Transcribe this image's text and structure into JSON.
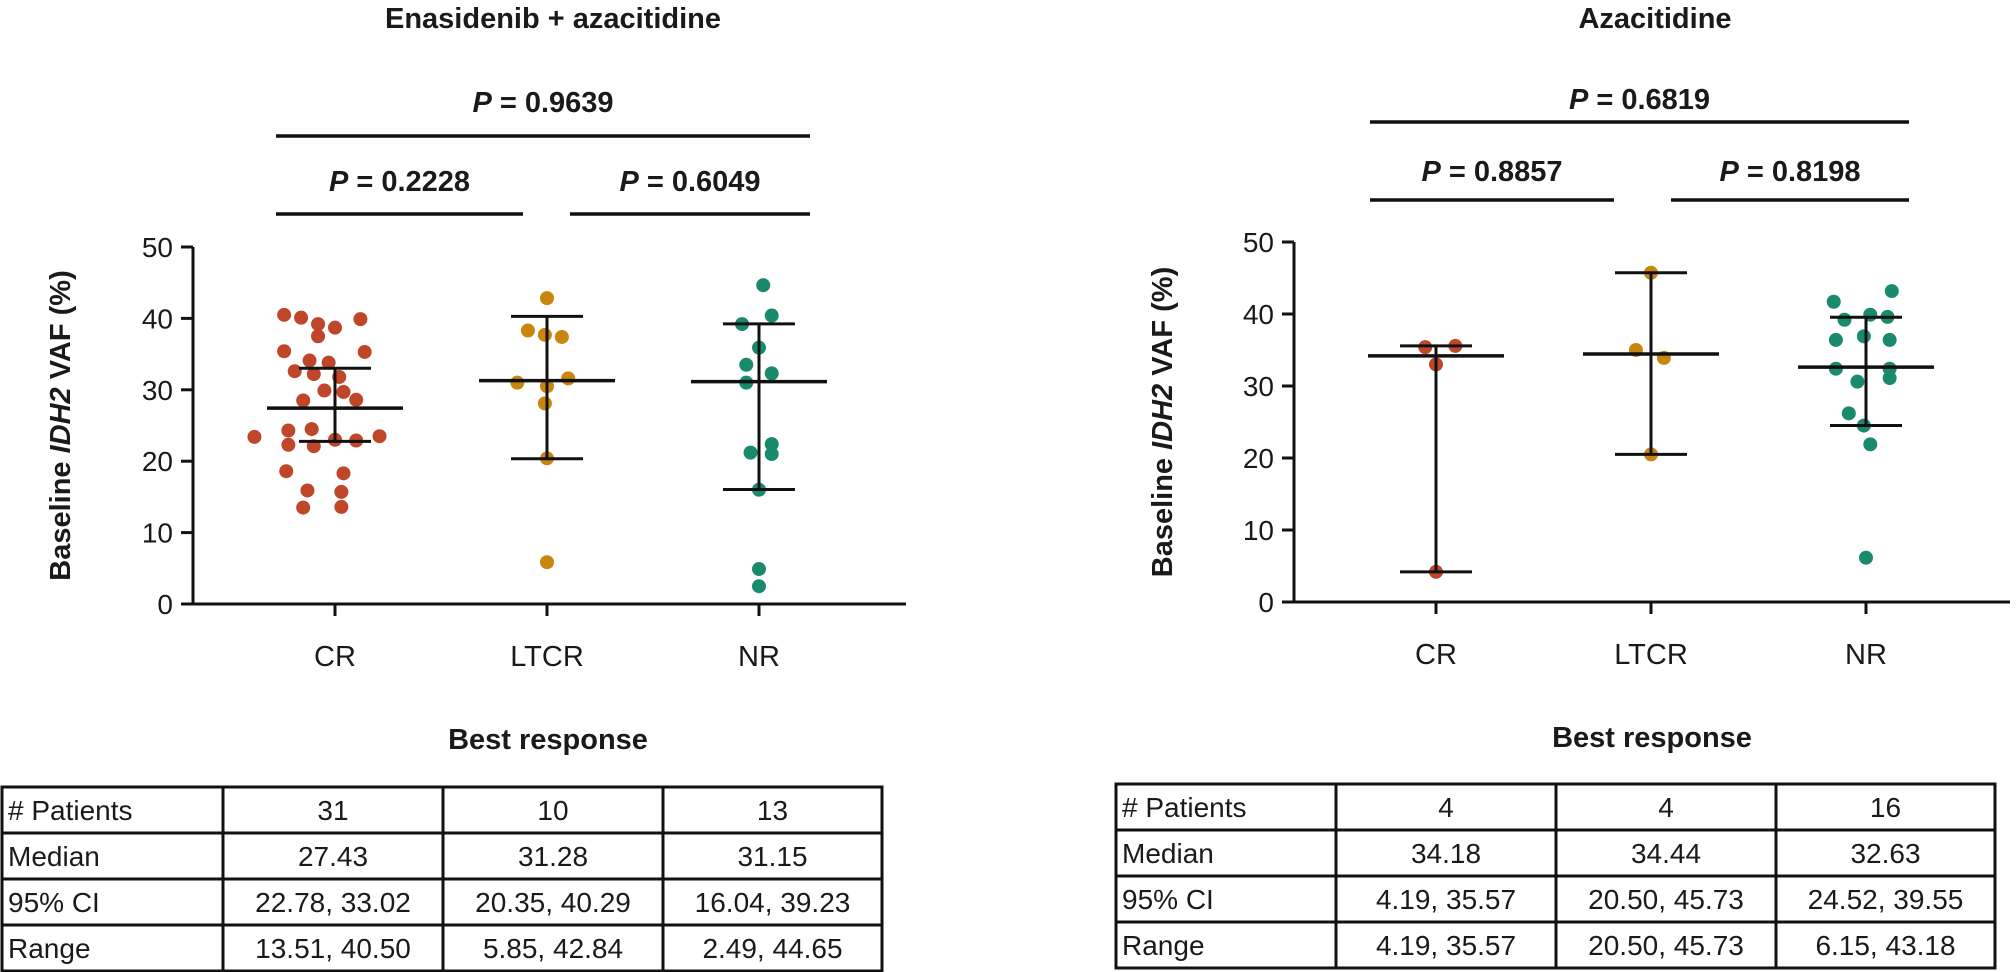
{
  "chart_data": [
    {
      "type": "scatter",
      "title": "Enasidenib + azacitidine",
      "ylabel_parts": [
        "Baseline ",
        "IDH2",
        " VAF (%)"
      ],
      "xlabel": "Best response",
      "categories": [
        "CR",
        "LTCR",
        "NR"
      ],
      "ylim": [
        0,
        50
      ],
      "yticks": [
        "0",
        "10",
        "20",
        "30",
        "40",
        "50"
      ],
      "colors": {
        "CR": "#c0462a",
        "LTCR": "#c8860f",
        "NR": "#1a8a6e"
      },
      "p_values": [
        {
          "label": "P",
          "text": " = 0.9639",
          "from": "CR",
          "to": "NR"
        },
        {
          "label": "P",
          "text": " = 0.2228",
          "from": "CR",
          "to": "LTCR"
        },
        {
          "label": "P",
          "text": " = 0.6049",
          "from": "LTCR",
          "to": "NR"
        }
      ],
      "series": [
        {
          "name": "CR",
          "median": 27.43,
          "ci": [
            22.78,
            33.02
          ],
          "points": [
            [
              -0.24,
              40.5
            ],
            [
              -0.16,
              40.1
            ],
            [
              -0.08,
              39.2
            ],
            [
              0.0,
              38.7
            ],
            [
              0.12,
              39.9
            ],
            [
              -0.08,
              37.5
            ],
            [
              -0.24,
              35.4
            ],
            [
              -0.12,
              34.1
            ],
            [
              -0.03,
              33.8
            ],
            [
              0.14,
              35.3
            ],
            [
              -0.19,
              32.6
            ],
            [
              -0.1,
              32.2
            ],
            [
              0.02,
              31.8
            ],
            [
              -0.05,
              29.9
            ],
            [
              0.04,
              29.7
            ],
            [
              -0.15,
              28.5
            ],
            [
              0.1,
              28.6
            ],
            [
              -0.22,
              24.3
            ],
            [
              -0.11,
              24.5
            ],
            [
              -0.38,
              23.4
            ],
            [
              0.21,
              23.5
            ],
            [
              0.0,
              23.0
            ],
            [
              0.1,
              22.9
            ],
            [
              -0.22,
              22.3
            ],
            [
              -0.1,
              22.1
            ],
            [
              -0.23,
              18.6
            ],
            [
              0.04,
              18.3
            ],
            [
              -0.13,
              15.9
            ],
            [
              0.03,
              15.7
            ],
            [
              -0.15,
              13.5
            ],
            [
              0.03,
              13.6
            ]
          ]
        },
        {
          "name": "LTCR",
          "median": 31.28,
          "ci": [
            20.35,
            40.29
          ],
          "points": [
            [
              0.0,
              42.84
            ],
            [
              -0.01,
              37.7
            ],
            [
              -0.09,
              38.3
            ],
            [
              0.07,
              37.4
            ],
            [
              -0.14,
              31.0
            ],
            [
              0.1,
              31.6
            ],
            [
              0.0,
              30.5
            ],
            [
              -0.01,
              28.1
            ],
            [
              0.0,
              20.4
            ],
            [
              0.0,
              5.85
            ]
          ]
        },
        {
          "name": "NR",
          "median": 31.15,
          "ci": [
            16.04,
            39.23
          ],
          "points": [
            [
              0.02,
              44.65
            ],
            [
              -0.08,
              39.2
            ],
            [
              0.06,
              40.4
            ],
            [
              0.0,
              35.9
            ],
            [
              -0.06,
              33.5
            ],
            [
              0.06,
              32.3
            ],
            [
              -0.06,
              31.0
            ],
            [
              0.06,
              22.4
            ],
            [
              -0.04,
              21.2
            ],
            [
              0.06,
              21.0
            ],
            [
              0.0,
              16.0
            ],
            [
              0.0,
              4.9
            ],
            [
              0.0,
              2.49
            ]
          ]
        }
      ]
    },
    {
      "type": "scatter",
      "title": "Azacitidine",
      "ylabel_parts": [
        "Baseline ",
        "IDH2",
        " VAF (%)"
      ],
      "xlabel": "Best response",
      "categories": [
        "CR",
        "LTCR",
        "NR"
      ],
      "ylim": [
        0,
        50
      ],
      "yticks": [
        "0",
        "10",
        "20",
        "30",
        "40",
        "50"
      ],
      "colors": {
        "CR": "#c0462a",
        "LTCR": "#c8860f",
        "NR": "#1a8a6e"
      },
      "p_values": [
        {
          "label": "P",
          "text": " = 0.6819",
          "from": "CR",
          "to": "NR"
        },
        {
          "label": "P",
          "text": " = 0.8857",
          "from": "CR",
          "to": "LTCR"
        },
        {
          "label": "P",
          "text": " = 0.8198",
          "from": "LTCR",
          "to": "NR"
        }
      ],
      "series": [
        {
          "name": "CR",
          "median": 34.18,
          "ci": [
            4.19,
            35.57
          ],
          "points": [
            [
              -0.05,
              35.4
            ],
            [
              0.09,
              35.57
            ],
            [
              0.0,
              33.0
            ],
            [
              0.0,
              4.19
            ]
          ]
        },
        {
          "name": "LTCR",
          "median": 34.44,
          "ci": [
            20.5,
            45.73
          ],
          "points": [
            [
              0.0,
              45.73
            ],
            [
              -0.07,
              35.0
            ],
            [
              0.06,
              33.9
            ],
            [
              0.0,
              20.5
            ]
          ]
        },
        {
          "name": "NR",
          "median": 32.63,
          "ci": [
            24.52,
            39.55
          ],
          "points": [
            [
              -0.15,
              41.7
            ],
            [
              0.12,
              43.18
            ],
            [
              -0.1,
              39.2
            ],
            [
              0.02,
              39.9
            ],
            [
              0.1,
              39.6
            ],
            [
              -0.14,
              36.4
            ],
            [
              -0.01,
              36.9
            ],
            [
              0.11,
              36.4
            ],
            [
              -0.14,
              32.4
            ],
            [
              0.11,
              32.4
            ],
            [
              0.11,
              31.1
            ],
            [
              -0.04,
              30.6
            ],
            [
              -0.08,
              26.2
            ],
            [
              -0.01,
              24.5
            ],
            [
              0.02,
              21.9
            ],
            [
              0.0,
              6.15
            ]
          ]
        }
      ]
    }
  ],
  "tables": [
    {
      "rows": [
        [
          "# Patients",
          "31",
          "10",
          "13"
        ],
        [
          "Median",
          "27.43",
          "31.28",
          "31.15"
        ],
        [
          "95% CI",
          "22.78, 33.02",
          "20.35, 40.29",
          "16.04, 39.23"
        ],
        [
          "Range",
          "13.51, 40.50",
          "5.85, 42.84",
          "2.49, 44.65"
        ]
      ]
    },
    {
      "rows": [
        [
          "# Patients",
          "4",
          "4",
          "16"
        ],
        [
          "Median",
          "34.18",
          "34.44",
          "32.63"
        ],
        [
          "95% CI",
          "4.19, 35.57",
          "20.50, 45.73",
          "24.52, 39.55"
        ],
        [
          "Range",
          "4.19, 35.57",
          "20.50, 45.73",
          "6.15, 43.18"
        ]
      ]
    }
  ]
}
